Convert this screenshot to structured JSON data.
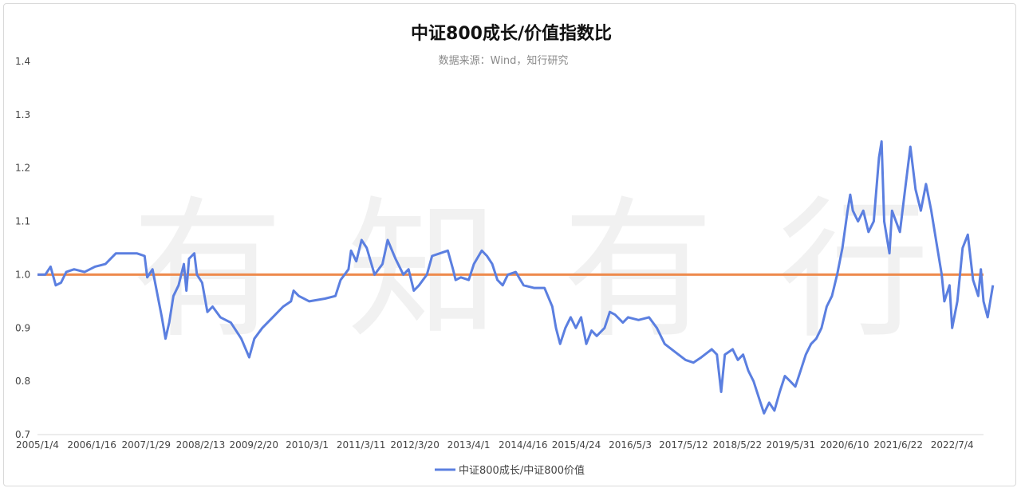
{
  "chart_data": {
    "type": "line",
    "title": "中证800成长/价值指数比",
    "subtitle": "数据来源：Wind，知行研究",
    "watermark": "有知有行",
    "ylim": [
      0.7,
      1.4
    ],
    "yticks": [
      "1.4",
      "1.3",
      "1.2",
      "1.1",
      "1.0",
      "0.9",
      "0.8",
      "0.7"
    ],
    "ytick_values": [
      1.4,
      1.3,
      1.2,
      1.1,
      1.0,
      0.9,
      0.8,
      0.7
    ],
    "xtick_labels": [
      "2005/1/4",
      "2006/1/16",
      "2007/1/29",
      "2008/2/13",
      "2009/2/20",
      "2010/3/1",
      "2011/3/11",
      "2012/3/20",
      "2013/4/1",
      "2014/4/16",
      "2015/4/24",
      "2016/5/3",
      "2017/5/12",
      "2018/5/22",
      "2019/5/31",
      "2020/6/10",
      "2021/6/22",
      "2022/7/4"
    ],
    "xtick_positions": [
      2005.0,
      2006.04,
      2007.08,
      2008.12,
      2009.14,
      2010.16,
      2011.19,
      2012.22,
      2013.25,
      2014.29,
      2015.31,
      2016.34,
      2017.36,
      2018.39,
      2019.41,
      2020.44,
      2021.47,
      2022.5
    ],
    "xlim": [
      2005.0,
      2023.1
    ],
    "reference_line": {
      "y": 1.0,
      "color": "#ee8a4c"
    },
    "series": [
      {
        "name": "中证800成长/中证800价值",
        "color": "#5b7fe0",
        "points": [
          [
            2005.0,
            1.0
          ],
          [
            2005.15,
            1.0
          ],
          [
            2005.25,
            1.015
          ],
          [
            2005.35,
            0.98
          ],
          [
            2005.45,
            0.985
          ],
          [
            2005.55,
            1.005
          ],
          [
            2005.7,
            1.01
          ],
          [
            2005.9,
            1.005
          ],
          [
            2006.1,
            1.015
          ],
          [
            2006.3,
            1.02
          ],
          [
            2006.5,
            1.04
          ],
          [
            2006.7,
            1.04
          ],
          [
            2006.9,
            1.04
          ],
          [
            2007.05,
            1.035
          ],
          [
            2007.1,
            0.995
          ],
          [
            2007.2,
            1.01
          ],
          [
            2007.3,
            0.96
          ],
          [
            2007.38,
            0.92
          ],
          [
            2007.45,
            0.88
          ],
          [
            2007.52,
            0.91
          ],
          [
            2007.6,
            0.96
          ],
          [
            2007.7,
            0.98
          ],
          [
            2007.8,
            1.02
          ],
          [
            2007.85,
            0.97
          ],
          [
            2007.9,
            1.03
          ],
          [
            2008.0,
            1.04
          ],
          [
            2008.05,
            1.0
          ],
          [
            2008.15,
            0.985
          ],
          [
            2008.25,
            0.93
          ],
          [
            2008.35,
            0.94
          ],
          [
            2008.5,
            0.92
          ],
          [
            2008.7,
            0.91
          ],
          [
            2008.9,
            0.88
          ],
          [
            2009.05,
            0.845
          ],
          [
            2009.15,
            0.88
          ],
          [
            2009.3,
            0.9
          ],
          [
            2009.5,
            0.92
          ],
          [
            2009.7,
            0.94
          ],
          [
            2009.85,
            0.95
          ],
          [
            2009.9,
            0.97
          ],
          [
            2010.0,
            0.96
          ],
          [
            2010.2,
            0.95
          ],
          [
            2010.5,
            0.955
          ],
          [
            2010.7,
            0.96
          ],
          [
            2010.8,
            0.99
          ],
          [
            2010.95,
            1.01
          ],
          [
            2011.0,
            1.045
          ],
          [
            2011.1,
            1.025
          ],
          [
            2011.2,
            1.065
          ],
          [
            2011.3,
            1.05
          ],
          [
            2011.45,
            1.0
          ],
          [
            2011.6,
            1.02
          ],
          [
            2011.7,
            1.065
          ],
          [
            2011.85,
            1.03
          ],
          [
            2012.0,
            1.0
          ],
          [
            2012.1,
            1.01
          ],
          [
            2012.2,
            0.97
          ],
          [
            2012.3,
            0.98
          ],
          [
            2012.45,
            1.0
          ],
          [
            2012.55,
            1.035
          ],
          [
            2012.7,
            1.04
          ],
          [
            2012.85,
            1.045
          ],
          [
            2012.95,
            1.01
          ],
          [
            2013.0,
            0.99
          ],
          [
            2013.1,
            0.995
          ],
          [
            2013.25,
            0.99
          ],
          [
            2013.35,
            1.02
          ],
          [
            2013.5,
            1.045
          ],
          [
            2013.6,
            1.035
          ],
          [
            2013.7,
            1.02
          ],
          [
            2013.8,
            0.99
          ],
          [
            2013.9,
            0.98
          ],
          [
            2014.0,
            1.0
          ],
          [
            2014.15,
            1.005
          ],
          [
            2014.3,
            0.98
          ],
          [
            2014.5,
            0.975
          ],
          [
            2014.7,
            0.975
          ],
          [
            2014.85,
            0.94
          ],
          [
            2014.92,
            0.9
          ],
          [
            2015.0,
            0.87
          ],
          [
            2015.1,
            0.9
          ],
          [
            2015.2,
            0.92
          ],
          [
            2015.3,
            0.9
          ],
          [
            2015.4,
            0.92
          ],
          [
            2015.5,
            0.87
          ],
          [
            2015.6,
            0.895
          ],
          [
            2015.7,
            0.885
          ],
          [
            2015.85,
            0.9
          ],
          [
            2015.95,
            0.93
          ],
          [
            2016.05,
            0.925
          ],
          [
            2016.2,
            0.91
          ],
          [
            2016.3,
            0.92
          ],
          [
            2016.5,
            0.915
          ],
          [
            2016.7,
            0.92
          ],
          [
            2016.85,
            0.9
          ],
          [
            2017.0,
            0.87
          ],
          [
            2017.2,
            0.855
          ],
          [
            2017.4,
            0.84
          ],
          [
            2017.55,
            0.835
          ],
          [
            2017.7,
            0.845
          ],
          [
            2017.9,
            0.86
          ],
          [
            2018.0,
            0.85
          ],
          [
            2018.08,
            0.78
          ],
          [
            2018.15,
            0.85
          ],
          [
            2018.3,
            0.86
          ],
          [
            2018.4,
            0.84
          ],
          [
            2018.5,
            0.85
          ],
          [
            2018.6,
            0.82
          ],
          [
            2018.7,
            0.8
          ],
          [
            2018.8,
            0.77
          ],
          [
            2018.9,
            0.74
          ],
          [
            2019.0,
            0.76
          ],
          [
            2019.1,
            0.745
          ],
          [
            2019.2,
            0.78
          ],
          [
            2019.3,
            0.81
          ],
          [
            2019.4,
            0.8
          ],
          [
            2019.5,
            0.79
          ],
          [
            2019.6,
            0.82
          ],
          [
            2019.7,
            0.85
          ],
          [
            2019.8,
            0.87
          ],
          [
            2019.9,
            0.88
          ],
          [
            2020.0,
            0.9
          ],
          [
            2020.1,
            0.94
          ],
          [
            2020.2,
            0.96
          ],
          [
            2020.3,
            1.0
          ],
          [
            2020.4,
            1.05
          ],
          [
            2020.5,
            1.12
          ],
          [
            2020.55,
            1.15
          ],
          [
            2020.6,
            1.12
          ],
          [
            2020.7,
            1.1
          ],
          [
            2020.8,
            1.12
          ],
          [
            2020.9,
            1.08
          ],
          [
            2021.0,
            1.1
          ],
          [
            2021.1,
            1.22
          ],
          [
            2021.15,
            1.25
          ],
          [
            2021.2,
            1.1
          ],
          [
            2021.3,
            1.04
          ],
          [
            2021.35,
            1.12
          ],
          [
            2021.5,
            1.08
          ],
          [
            2021.6,
            1.16
          ],
          [
            2021.7,
            1.24
          ],
          [
            2021.8,
            1.16
          ],
          [
            2021.9,
            1.12
          ],
          [
            2022.0,
            1.17
          ],
          [
            2022.1,
            1.12
          ],
          [
            2022.2,
            1.06
          ],
          [
            2022.3,
            1.0
          ],
          [
            2022.35,
            0.95
          ],
          [
            2022.45,
            0.98
          ],
          [
            2022.5,
            0.9
          ],
          [
            2022.6,
            0.95
          ],
          [
            2022.7,
            1.05
          ],
          [
            2022.8,
            1.075
          ],
          [
            2022.9,
            0.99
          ],
          [
            2023.0,
            0.96
          ],
          [
            2023.05,
            1.01
          ],
          [
            2023.1,
            0.95
          ],
          [
            2023.18,
            0.92
          ],
          [
            2023.22,
            0.945
          ],
          [
            2023.28,
            0.98
          ]
        ]
      }
    ],
    "legend_position": "bottom",
    "grid": false
  }
}
